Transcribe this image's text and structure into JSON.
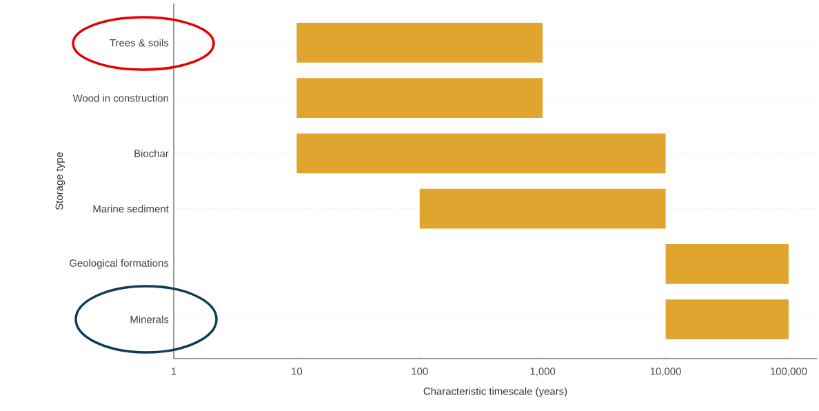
{
  "chart_data": {
    "type": "bar",
    "orientation": "horizontal",
    "xlabel": "Characteristic timescale (years)",
    "ylabel": "Storage type",
    "categories": [
      "Trees & soils",
      "Wood in construction",
      "Biochar",
      "Marine sediment",
      "Geological formations",
      "Minerals"
    ],
    "base": [
      10,
      10,
      10,
      100,
      10000,
      10000
    ],
    "values": [
      990,
      990,
      9990,
      9900,
      90000,
      90000
    ],
    "color": "#e0a52e",
    "log": "x",
    "grid": "y",
    "xlim": [
      1,
      170000
    ],
    "xticks": [
      1,
      10,
      100,
      {
        "value": 1000,
        "label": "1,000"
      },
      {
        "value": 10000,
        "label": "10,000"
      },
      {
        "value": 100000,
        "label": "100,000"
      }
    ]
  }
}
